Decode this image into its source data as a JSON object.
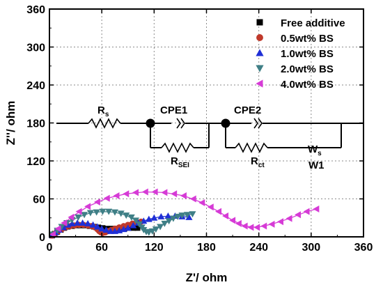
{
  "chart_data": {
    "type": "scatter",
    "xlabel": "Z'/ ohm",
    "ylabel": "Z''/ ohm",
    "xlim": [
      0,
      360
    ],
    "ylim": [
      0,
      360
    ],
    "xticks": [
      "0",
      "60",
      "120",
      "180",
      "240",
      "300",
      "360"
    ],
    "yticks": [
      "0",
      "60",
      "120",
      "180",
      "240",
      "300",
      "360"
    ],
    "grid": true,
    "legend_position": "top-right",
    "series": [
      {
        "name": "Free additive",
        "marker": "square",
        "color": "#000000",
        "points": [
          [
            3,
            2
          ],
          [
            6,
            5
          ],
          [
            9,
            8
          ],
          [
            13,
            11
          ],
          [
            17,
            14
          ],
          [
            21,
            16
          ],
          [
            26,
            17
          ],
          [
            31,
            18
          ],
          [
            36,
            18
          ],
          [
            41,
            18
          ],
          [
            46,
            17
          ],
          [
            51,
            16
          ],
          [
            56,
            15
          ],
          [
            61,
            14
          ],
          [
            66,
            13
          ],
          [
            71,
            13
          ],
          [
            76,
            13
          ],
          [
            81,
            13
          ],
          [
            86,
            13
          ],
          [
            91,
            14
          ],
          [
            96,
            14
          ],
          [
            101,
            14
          ]
        ],
        "fit": [
          [
            2,
            1
          ],
          [
            8,
            8
          ],
          [
            15,
            13
          ],
          [
            25,
            17
          ],
          [
            35,
            18
          ],
          [
            45,
            17
          ],
          [
            55,
            15
          ],
          [
            65,
            13
          ],
          [
            75,
            13
          ],
          [
            85,
            13
          ],
          [
            95,
            14
          ],
          [
            102,
            14
          ]
        ]
      },
      {
        "name": "0.5wt% BS",
        "marker": "circle",
        "color": "#c0392b",
        "points": [
          [
            3,
            2
          ],
          [
            6,
            5
          ],
          [
            10,
            9
          ],
          [
            14,
            12
          ],
          [
            19,
            15
          ],
          [
            24,
            17
          ],
          [
            29,
            18
          ],
          [
            34,
            19
          ],
          [
            39,
            19
          ],
          [
            44,
            18
          ],
          [
            48,
            17
          ],
          [
            52,
            15
          ],
          [
            55,
            12
          ],
          [
            57,
            9
          ],
          [
            59,
            7
          ],
          [
            61,
            6
          ],
          [
            64,
            7
          ],
          [
            67,
            9
          ],
          [
            71,
            11
          ],
          [
            75,
            13
          ],
          [
            80,
            15
          ],
          [
            85,
            17
          ],
          [
            90,
            19
          ],
          [
            95,
            21
          ],
          [
            100,
            23
          ],
          [
            105,
            24
          ]
        ],
        "fit": [
          [
            2,
            1
          ],
          [
            10,
            9
          ],
          [
            20,
            15
          ],
          [
            30,
            18
          ],
          [
            40,
            19
          ],
          [
            48,
            17
          ],
          [
            54,
            13
          ],
          [
            58,
            8
          ],
          [
            61,
            6
          ],
          [
            66,
            8
          ],
          [
            75,
            13
          ],
          [
            85,
            17
          ],
          [
            95,
            21
          ],
          [
            105,
            24
          ]
        ]
      },
      {
        "name": "1.0wt% BS",
        "marker": "triangle-up",
        "color": "#1f2fd6",
        "points": [
          [
            3,
            3
          ],
          [
            7,
            7
          ],
          [
            11,
            11
          ],
          [
            16,
            15
          ],
          [
            21,
            19
          ],
          [
            26,
            21
          ],
          [
            32,
            22
          ],
          [
            38,
            22
          ],
          [
            44,
            21
          ],
          [
            50,
            19
          ],
          [
            55,
            16
          ],
          [
            60,
            13
          ],
          [
            65,
            11
          ],
          [
            70,
            9
          ],
          [
            75,
            9
          ],
          [
            80,
            10
          ],
          [
            85,
            12
          ],
          [
            90,
            14
          ],
          [
            96,
            18
          ],
          [
            102,
            22
          ],
          [
            108,
            25
          ],
          [
            114,
            28
          ],
          [
            120,
            30
          ],
          [
            128,
            32
          ],
          [
            136,
            33
          ],
          [
            144,
            33
          ],
          [
            152,
            32
          ],
          [
            160,
            31
          ]
        ],
        "fit": [
          [
            2,
            1
          ],
          [
            11,
            11
          ],
          [
            21,
            19
          ],
          [
            32,
            22
          ],
          [
            44,
            21
          ],
          [
            55,
            16
          ],
          [
            65,
            11
          ],
          [
            73,
            9
          ],
          [
            82,
            11
          ],
          [
            92,
            15
          ],
          [
            102,
            22
          ],
          [
            114,
            28
          ],
          [
            128,
            32
          ],
          [
            144,
            33
          ],
          [
            160,
            31
          ]
        ]
      },
      {
        "name": "2.0wt% BS",
        "marker": "triangle-down",
        "color": "#3f7f86",
        "points": [
          [
            4,
            4
          ],
          [
            9,
            10
          ],
          [
            14,
            16
          ],
          [
            20,
            22
          ],
          [
            26,
            27
          ],
          [
            33,
            31
          ],
          [
            40,
            35
          ],
          [
            47,
            38
          ],
          [
            54,
            39
          ],
          [
            61,
            40
          ],
          [
            68,
            40
          ],
          [
            75,
            39
          ],
          [
            82,
            37
          ],
          [
            88,
            34
          ],
          [
            94,
            31
          ],
          [
            99,
            26
          ],
          [
            103,
            20
          ],
          [
            106,
            15
          ],
          [
            108,
            11
          ],
          [
            111,
            8
          ],
          [
            114,
            7
          ],
          [
            118,
            9
          ],
          [
            122,
            12
          ],
          [
            127,
            16
          ],
          [
            132,
            21
          ],
          [
            137,
            25
          ],
          [
            142,
            29
          ],
          [
            147,
            32
          ],
          [
            152,
            34
          ],
          [
            158,
            35
          ],
          [
            164,
            36
          ]
        ],
        "fit": [
          [
            2,
            2
          ],
          [
            10,
            11
          ],
          [
            20,
            22
          ],
          [
            33,
            31
          ],
          [
            47,
            38
          ],
          [
            61,
            40
          ],
          [
            75,
            39
          ],
          [
            88,
            34
          ],
          [
            99,
            26
          ],
          [
            106,
            15
          ],
          [
            112,
            8
          ],
          [
            118,
            9
          ],
          [
            127,
            16
          ],
          [
            137,
            25
          ],
          [
            147,
            32
          ],
          [
            158,
            35
          ],
          [
            165,
            36
          ]
        ]
      },
      {
        "name": "4.0wt% BS",
        "marker": "triangle-left",
        "color": "#d63bd6",
        "points": [
          [
            4,
            4
          ],
          [
            10,
            13
          ],
          [
            17,
            22
          ],
          [
            25,
            31
          ],
          [
            34,
            40
          ],
          [
            44,
            48
          ],
          [
            55,
            55
          ],
          [
            66,
            61
          ],
          [
            77,
            65
          ],
          [
            88,
            68
          ],
          [
            99,
            70
          ],
          [
            110,
            71
          ],
          [
            121,
            71
          ],
          [
            132,
            70
          ],
          [
            143,
            68
          ],
          [
            154,
            65
          ],
          [
            165,
            60
          ],
          [
            175,
            54
          ],
          [
            185,
            47
          ],
          [
            194,
            40
          ],
          [
            202,
            33
          ],
          [
            210,
            26
          ],
          [
            217,
            21
          ],
          [
            224,
            17
          ],
          [
            231,
            15
          ],
          [
            238,
            15
          ],
          [
            246,
            17
          ],
          [
            255,
            20
          ],
          [
            265,
            24
          ],
          [
            275,
            29
          ],
          [
            285,
            35
          ],
          [
            295,
            40
          ],
          [
            306,
            44
          ]
        ],
        "fit": [
          [
            2,
            1
          ],
          [
            10,
            13
          ],
          [
            25,
            31
          ],
          [
            44,
            48
          ],
          [
            66,
            61
          ],
          [
            88,
            68
          ],
          [
            110,
            71
          ],
          [
            132,
            70
          ],
          [
            154,
            65
          ],
          [
            175,
            54
          ],
          [
            194,
            40
          ],
          [
            210,
            26
          ],
          [
            224,
            17
          ],
          [
            238,
            15
          ],
          [
            255,
            20
          ],
          [
            275,
            29
          ],
          [
            295,
            40
          ],
          [
            306,
            44
          ]
        ]
      }
    ],
    "circuit": {
      "labels": {
        "rs": "R",
        "rs_sub": "s",
        "cpe1": "CPE1",
        "cpe2": "CPE2",
        "rsei": "R",
        "rsei_sub": "SEI",
        "rct": "R",
        "rct_sub": "ct",
        "ws": "W",
        "ws_sub": "s",
        "w1": "W1"
      }
    }
  }
}
